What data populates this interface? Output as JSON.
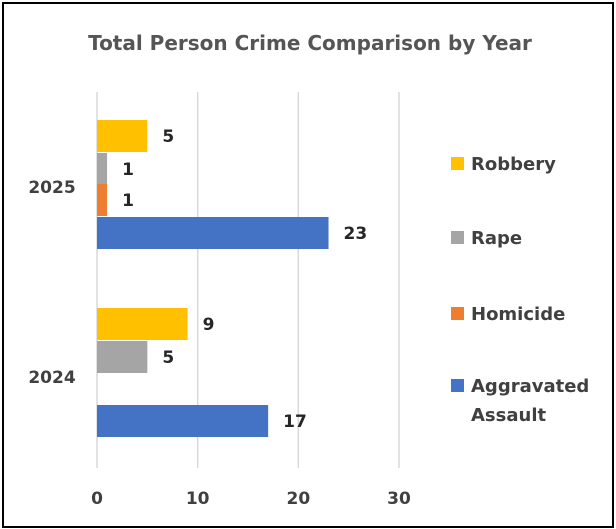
{
  "chart_data": {
    "type": "bar",
    "orientation": "horizontal",
    "title": "Total Person Crime Comparison by Year",
    "categories": [
      "2025",
      "2024"
    ],
    "series": [
      {
        "name": "Robbery",
        "color": "#FFC000",
        "values": [
          5,
          9
        ]
      },
      {
        "name": "Rape",
        "color": "#A5A5A5",
        "values": [
          1,
          5
        ]
      },
      {
        "name": "Homicide",
        "color": "#ED7D31",
        "values": [
          1,
          0
        ]
      },
      {
        "name": "Aggravated Assault",
        "legend_lines": [
          "Aggravated",
          "Assault"
        ],
        "color": "#4472C4",
        "values": [
          23,
          17
        ]
      }
    ],
    "data_labels": [
      [
        "5",
        "9"
      ],
      [
        "1",
        "5"
      ],
      [
        "1",
        ""
      ],
      [
        "23",
        "17"
      ]
    ],
    "xlim": [
      0,
      30
    ],
    "xticks": [
      "0",
      "10",
      "20",
      "30"
    ],
    "grid": true,
    "legend_position": "right"
  }
}
